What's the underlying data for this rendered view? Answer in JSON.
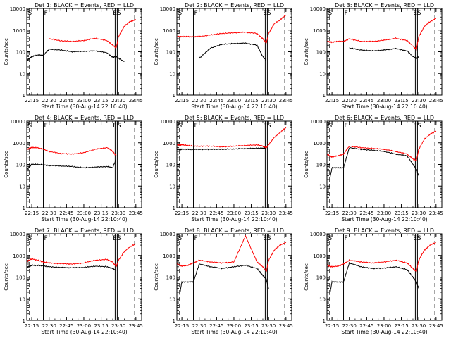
{
  "figure": {
    "xlabel_prefix": "Start Time",
    "xlabel_suffix": "(30-Aug-14 22:10:40)",
    "ylabel": "Counts/sec",
    "xticks": [
      "22:15",
      "22:30",
      "22:45",
      "23:00",
      "23:15",
      "23:30",
      "23:45"
    ],
    "yticks": [
      "1",
      "10",
      "100",
      "1000",
      "10000"
    ],
    "colors": {
      "events": "#000000",
      "lld": "#ff0000",
      "axes": "#000000",
      "background": "#ffffff"
    }
  },
  "chart_data": [
    {
      "type": "line",
      "title": "Det 1: BLACK = Events, RED = LLD",
      "xlabel": "Start Time (30-Aug-14 22:10:40)",
      "ylabel": "Counts/sec",
      "xlim": [
        "22:10:40",
        "23:50:00"
      ],
      "ylim": [
        1,
        10000
      ],
      "yscale": "log",
      "markers": {
        "dashed": [
          "22:13",
          "23:44"
        ],
        "solid": [
          "22:25"
        ],
        "S_at": "22:11",
        "F_at": "22:25",
        "ES_at": "23:28"
      },
      "series": [
        {
          "name": "Events",
          "color": "#000000",
          "x": [
            "22:11",
            "22:13",
            "22:15",
            "22:20",
            "22:25",
            "22:30",
            "22:40",
            "22:50",
            "23:00",
            "23:10",
            "23:20",
            "23:25",
            "23:28",
            "23:30",
            "23:35",
            "23:40",
            "23:45"
          ],
          "values": [
            40,
            50,
            60,
            70,
            70,
            130,
            120,
            100,
            105,
            110,
            90,
            55,
            60,
            50,
            35,
            null,
            null
          ]
        },
        {
          "name": "LLD",
          "color": "#ff0000",
          "x": [
            "22:11",
            "22:13",
            "22:15",
            "22:20",
            "22:25",
            "22:30",
            "22:40",
            "22:50",
            "23:00",
            "23:10",
            "23:20",
            "23:25",
            "23:28",
            "23:30",
            "23:35",
            "23:40",
            "23:45"
          ],
          "values": [
            null,
            null,
            null,
            null,
            null,
            400,
            320,
            300,
            330,
            420,
            330,
            200,
            150,
            500,
            1500,
            2500,
            3000
          ]
        }
      ]
    },
    {
      "type": "line",
      "title": "Det 2: BLACK = Events, RED = LLD",
      "xlabel": "Start Time (30-Aug-14 22:10:40)",
      "ylabel": "Counts/sec",
      "xlim": [
        "22:10:40",
        "23:50:00"
      ],
      "ylim": [
        1,
        10000
      ],
      "yscale": "log",
      "markers": {
        "dashed": [
          "22:13",
          "23:44"
        ],
        "solid": [
          "22:25"
        ],
        "S_at": "22:11",
        "F_at": "22:25",
        "ES_at": "23:28"
      },
      "series": [
        {
          "name": "Events",
          "color": "#000000",
          "x": [
            "22:11",
            "22:13",
            "22:15",
            "22:20",
            "22:25",
            "22:30",
            "22:40",
            "22:50",
            "23:00",
            "23:10",
            "23:20",
            "23:25",
            "23:28",
            "23:30",
            "23:35",
            "23:40",
            "23:45"
          ],
          "values": [
            null,
            null,
            null,
            null,
            null,
            50,
            150,
            220,
            240,
            250,
            200,
            60,
            40,
            null,
            null,
            null,
            null
          ]
        },
        {
          "name": "LLD",
          "color": "#ff0000",
          "x": [
            "22:11",
            "22:13",
            "22:15",
            "22:20",
            "22:25",
            "22:30",
            "22:40",
            "22:50",
            "23:00",
            "23:10",
            "23:20",
            "23:25",
            "23:28",
            "23:30",
            "23:35",
            "23:40",
            "23:45"
          ],
          "values": [
            500,
            500,
            500,
            500,
            500,
            500,
            600,
            700,
            750,
            800,
            700,
            400,
            250,
            700,
            2000,
            3000,
            5000
          ]
        }
      ]
    },
    {
      "type": "line",
      "title": "Det 3: BLACK = Events, RED = LLD",
      "xlabel": "Start Time (30-Aug-14 22:10:40)",
      "ylabel": "Counts/sec",
      "xlim": [
        "22:10:40",
        "23:50:00"
      ],
      "ylim": [
        1,
        10000
      ],
      "yscale": "log",
      "markers": {
        "dashed": [
          "22:13",
          "23:44"
        ],
        "solid": [
          "22:25"
        ],
        "S_at": "22:11",
        "F_at": "22:25",
        "ES_at": "23:28"
      },
      "series": [
        {
          "name": "Events",
          "color": "#000000",
          "x": [
            "22:11",
            "22:13",
            "22:15",
            "22:20",
            "22:25",
            "22:30",
            "22:40",
            "22:50",
            "23:00",
            "23:10",
            "23:20",
            "23:25",
            "23:28",
            "23:30",
            "23:35",
            "23:40",
            "23:45"
          ],
          "values": [
            null,
            null,
            null,
            null,
            null,
            150,
            120,
            110,
            120,
            140,
            110,
            60,
            50,
            60,
            null,
            null,
            null
          ]
        },
        {
          "name": "LLD",
          "color": "#ff0000",
          "x": [
            "22:11",
            "22:13",
            "22:15",
            "22:20",
            "22:25",
            "22:30",
            "22:40",
            "22:50",
            "23:00",
            "23:10",
            "23:20",
            "23:25",
            "23:28",
            "23:30",
            "23:35",
            "23:40",
            "23:45"
          ],
          "values": [
            300,
            280,
            280,
            300,
            300,
            400,
            300,
            300,
            340,
            420,
            330,
            180,
            130,
            500,
            1500,
            2500,
            3500
          ]
        }
      ]
    },
    {
      "type": "line",
      "title": "Det 4: BLACK = Events, RED = LLD",
      "xlabel": "Start Time (30-Aug-14 22:10:40)",
      "ylabel": "Counts/sec",
      "xlim": [
        "22:10:40",
        "23:50:00"
      ],
      "ylim": [
        1,
        10000
      ],
      "yscale": "log",
      "markers": {
        "dashed": [
          "22:13",
          "23:44"
        ],
        "solid": [
          "22:25"
        ],
        "S_at": "22:11",
        "F_at": "22:25",
        "ES_at": "23:28"
      },
      "series": [
        {
          "name": "Events",
          "color": "#000000",
          "x": [
            "22:11",
            "22:13",
            "22:15",
            "22:20",
            "22:25",
            "22:30",
            "22:40",
            "22:50",
            "23:00",
            "23:10",
            "23:20",
            "23:25",
            "23:28",
            "23:30",
            "23:35",
            "23:40",
            "23:45"
          ],
          "values": [
            60,
            80,
            100,
            100,
            95,
            90,
            85,
            80,
            70,
            75,
            80,
            70,
            180,
            null,
            null,
            null,
            null
          ]
        },
        {
          "name": "LLD",
          "color": "#ff0000",
          "x": [
            "22:11",
            "22:13",
            "22:15",
            "22:20",
            "22:25",
            "22:30",
            "22:40",
            "22:50",
            "23:00",
            "23:10",
            "23:20",
            "23:25",
            "23:28",
            "23:30",
            "23:35",
            "23:40",
            "23:45"
          ],
          "values": [
            500,
            550,
            600,
            600,
            500,
            400,
            320,
            300,
            350,
            500,
            600,
            400,
            250,
            null,
            null,
            null,
            null
          ]
        }
      ]
    },
    {
      "type": "line",
      "title": "Det 5: BLACK = Events, RED = LLD",
      "xlabel": "Start Time (30-Aug-14 22:10:40)",
      "ylabel": "Counts/sec",
      "xlim": [
        "22:10:40",
        "23:50:00"
      ],
      "ylim": [
        1,
        10000
      ],
      "yscale": "log",
      "markers": {
        "dashed": [
          "22:13",
          "23:44"
        ],
        "solid": [
          "22:25"
        ],
        "S_at": "22:11",
        "F_at": "22:25",
        "ES_at": "23:28"
      },
      "series": [
        {
          "name": "Events",
          "color": "#000000",
          "x": [
            "22:11",
            "22:13",
            "22:15",
            "22:20",
            "22:25",
            "22:30",
            "22:40",
            "22:50",
            "23:00",
            "23:10",
            "23:20",
            "23:25",
            "23:28",
            "23:30",
            "23:35",
            "23:40",
            "23:45"
          ],
          "values": [
            500,
            500,
            500,
            500,
            500,
            500,
            500,
            500,
            520,
            540,
            560,
            560,
            560,
            null,
            null,
            null,
            null
          ]
        },
        {
          "name": "LLD",
          "color": "#ff0000",
          "x": [
            "22:11",
            "22:13",
            "22:15",
            "22:20",
            "22:25",
            "22:30",
            "22:40",
            "22:50",
            "23:00",
            "23:10",
            "23:20",
            "23:25",
            "23:28",
            "23:30",
            "23:35",
            "23:40",
            "23:45"
          ],
          "values": [
            800,
            800,
            800,
            750,
            700,
            700,
            700,
            650,
            700,
            750,
            800,
            700,
            600,
            800,
            1800,
            3000,
            5000
          ]
        }
      ]
    },
    {
      "type": "line",
      "title": "Det 6: BLACK = Events, RED = LLD",
      "xlabel": "Start Time (30-Aug-14 22:10:40)",
      "ylabel": "Counts/sec",
      "xlim": [
        "22:10:40",
        "23:50:00"
      ],
      "ylim": [
        1,
        10000
      ],
      "yscale": "log",
      "markers": {
        "dashed": [
          "22:13",
          "23:44"
        ],
        "solid": [
          "22:25"
        ],
        "S_at": "22:11",
        "F_at": "22:25",
        "ES_at": "23:28"
      },
      "series": [
        {
          "name": "Events",
          "color": "#000000",
          "x": [
            "22:11",
            "22:13",
            "22:15",
            "22:20",
            "22:25",
            "22:30",
            "22:40",
            "22:50",
            "23:00",
            "23:10",
            "23:20",
            "23:25",
            "23:28",
            "23:30",
            "23:35",
            "23:40",
            "23:45"
          ],
          "values": [
            null,
            20,
            70,
            70,
            70,
            600,
            500,
            450,
            400,
            300,
            250,
            100,
            60,
            30,
            null,
            null,
            null
          ]
        },
        {
          "name": "LLD",
          "color": "#ff0000",
          "x": [
            "22:11",
            "22:13",
            "22:15",
            "22:20",
            "22:25",
            "22:30",
            "22:40",
            "22:50",
            "23:00",
            "23:10",
            "23:20",
            "23:25",
            "23:28",
            "23:30",
            "23:35",
            "23:40",
            "23:45"
          ],
          "values": [
            300,
            250,
            220,
            250,
            300,
            700,
            600,
            550,
            500,
            400,
            300,
            180,
            150,
            500,
            1500,
            2500,
            3500
          ]
        }
      ]
    },
    {
      "type": "line",
      "title": "Det 7: BLACK = Events, RED = LLD",
      "xlabel": "Start Time (30-Aug-14 22:10:40)",
      "ylabel": "Counts/sec",
      "xlim": [
        "22:10:40",
        "23:50:00"
      ],
      "ylim": [
        1,
        10000
      ],
      "yscale": "log",
      "markers": {
        "dashed": [
          "22:13",
          "23:44"
        ],
        "solid": [
          "22:25"
        ],
        "S_at": "22:11",
        "F_at": "22:25",
        "ES_at": "23:28"
      },
      "series": [
        {
          "name": "Events",
          "color": "#000000",
          "x": [
            "22:11",
            "22:13",
            "22:15",
            "22:20",
            "22:25",
            "22:30",
            "22:40",
            "22:50",
            "23:00",
            "23:10",
            "23:20",
            "23:25",
            "23:28",
            "23:30",
            "23:35",
            "23:40",
            "23:45"
          ],
          "values": [
            300,
            300,
            350,
            350,
            330,
            300,
            280,
            270,
            280,
            320,
            300,
            250,
            200,
            null,
            null,
            null,
            null
          ]
        },
        {
          "name": "LLD",
          "color": "#ff0000",
          "x": [
            "22:11",
            "22:13",
            "22:15",
            "22:20",
            "22:25",
            "22:30",
            "22:40",
            "22:50",
            "23:00",
            "23:10",
            "23:20",
            "23:25",
            "23:28",
            "23:30",
            "23:35",
            "23:40",
            "23:45"
          ],
          "values": [
            550,
            600,
            700,
            600,
            500,
            450,
            420,
            400,
            450,
            600,
            650,
            500,
            300,
            600,
            1500,
            2500,
            3500
          ]
        }
      ]
    },
    {
      "type": "line",
      "title": "Det 8: BLACK = Events, RED = LLD",
      "xlabel": "Start Time (30-Aug-14 22:10:40)",
      "ylabel": "Counts/sec",
      "xlim": [
        "22:10:40",
        "23:50:00"
      ],
      "ylim": [
        1,
        10000
      ],
      "yscale": "log",
      "markers": {
        "dashed": [
          "22:13",
          "23:44"
        ],
        "solid": [
          "22:25"
        ],
        "S_at": "22:11",
        "F_at": "22:25",
        "ES_at": "23:28"
      },
      "series": [
        {
          "name": "Events",
          "color": "#000000",
          "x": [
            "22:11",
            "22:13",
            "22:15",
            "22:20",
            "22:25",
            "22:30",
            "22:40",
            "22:50",
            "23:00",
            "23:10",
            "23:20",
            "23:25",
            "23:28",
            "23:30",
            "23:35",
            "23:40",
            "23:45"
          ],
          "values": [
            null,
            15,
            60,
            60,
            60,
            400,
            300,
            250,
            300,
            350,
            250,
            120,
            80,
            30,
            null,
            null,
            null
          ]
        },
        {
          "name": "LLD",
          "color": "#ff0000",
          "x": [
            "22:11",
            "22:13",
            "22:15",
            "22:20",
            "22:25",
            "22:30",
            "22:40",
            "22:50",
            "23:00",
            "23:10",
            "23:20",
            "23:25",
            "23:28",
            "23:30",
            "23:35",
            "23:40",
            "23:45"
          ],
          "values": [
            400,
            350,
            330,
            350,
            450,
            600,
            500,
            450,
            500,
            8000,
            500,
            300,
            180,
            600,
            1800,
            3000,
            4000
          ]
        }
      ]
    },
    {
      "type": "line",
      "title": "Det 9: BLACK = Events, RED = LLD",
      "xlabel": "Start Time (30-Aug-14 22:10:40)",
      "ylabel": "Counts/sec",
      "xlim": [
        "22:10:40",
        "23:50:00"
      ],
      "ylim": [
        1,
        10000
      ],
      "yscale": "log",
      "markers": {
        "dashed": [
          "22:13",
          "23:44"
        ],
        "solid": [
          "22:25"
        ],
        "S_at": "22:11",
        "F_at": "22:25",
        "ES_at": "23:28"
      },
      "series": [
        {
          "name": "Events",
          "color": "#000000",
          "x": [
            "22:11",
            "22:13",
            "22:15",
            "22:20",
            "22:25",
            "22:30",
            "22:40",
            "22:50",
            "23:00",
            "23:10",
            "23:20",
            "23:25",
            "23:28",
            "23:30",
            "23:35",
            "23:40",
            "23:45"
          ],
          "values": [
            null,
            15,
            60,
            60,
            60,
            450,
            300,
            250,
            260,
            300,
            220,
            100,
            60,
            30,
            null,
            null,
            null
          ]
        },
        {
          "name": "LLD",
          "color": "#ff0000",
          "x": [
            "22:11",
            "22:13",
            "22:15",
            "22:20",
            "22:25",
            "22:30",
            "22:40",
            "22:50",
            "23:00",
            "23:10",
            "23:20",
            "23:25",
            "23:28",
            "23:30",
            "23:35",
            "23:40",
            "23:45"
          ],
          "values": [
            350,
            320,
            300,
            320,
            400,
            600,
            500,
            450,
            500,
            600,
            450,
            250,
            180,
            600,
            1800,
            3000,
            4000
          ]
        }
      ]
    }
  ]
}
